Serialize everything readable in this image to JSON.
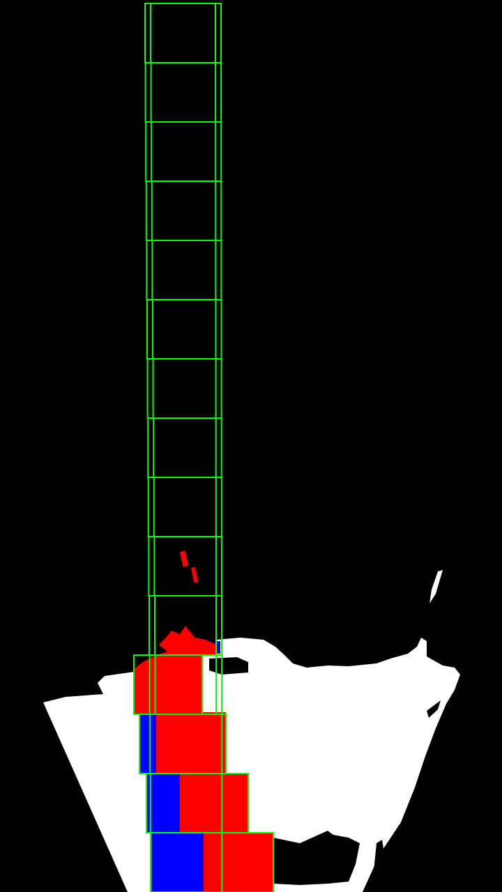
{
  "colors": {
    "background": "#000000",
    "road_mask": "#ffffff",
    "window_outline": "#00ff00",
    "left_lane_pixels": "#ff0000",
    "right_lane_pixels": "#0000ff"
  },
  "left_lane": {
    "sliding_window_count": 15
  }
}
